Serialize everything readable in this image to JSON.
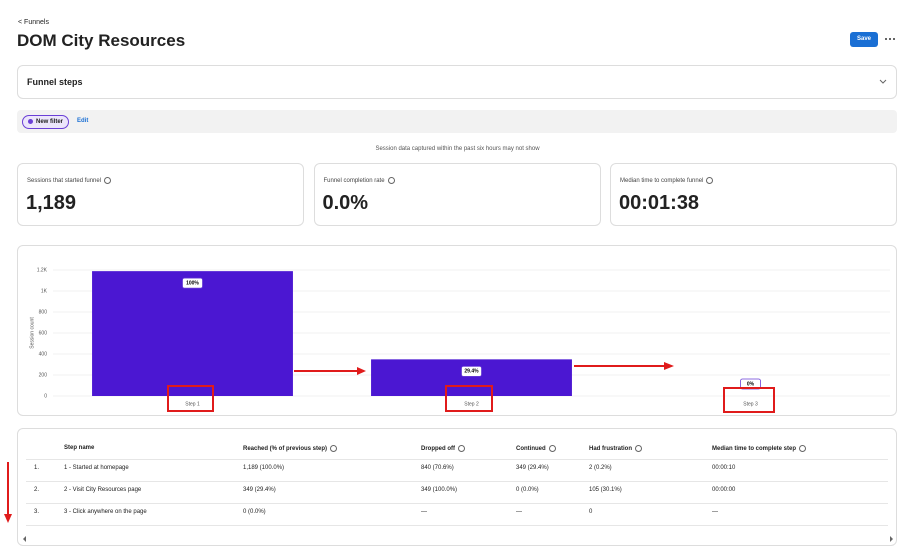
{
  "header": {
    "breadcrumb": "Funnels",
    "title": "DOM City Resources",
    "save": "Save"
  },
  "steps_panel": {
    "title": "Funnel steps"
  },
  "filter": {
    "chip": "New filter",
    "edit": "Edit"
  },
  "notice": "Session data captured within the past six hours may not show",
  "metrics": [
    {
      "label": "Sessions that started funnel",
      "value": "1,189"
    },
    {
      "label": "Funnel completion rate",
      "value": "0.0%"
    },
    {
      "label": "Median time to complete funnel",
      "value": "00:01:38"
    }
  ],
  "chart_data": {
    "type": "bar",
    "y_label": "Session count",
    "categories": [
      "Step 1",
      "Step 2",
      "Step 3"
    ],
    "values": [
      1189,
      349,
      0
    ],
    "bar_labels": [
      "100%",
      "29.4%",
      "0%"
    ],
    "color": "#4b17d2",
    "ylim": [
      0,
      1200
    ],
    "yticks": [
      0,
      200,
      400,
      600,
      800,
      {
        "value": 1000,
        "label": "1K"
      },
      {
        "value": 1200,
        "label": "1.2K"
      }
    ],
    "grid": true
  },
  "table": {
    "columns": [
      "Step name",
      "Reached (% of previous step)",
      "Dropped off",
      "Continued",
      "Had frustration",
      "Median time to complete step"
    ],
    "rows": [
      [
        "1.",
        "1 - Started at homepage",
        "1,189 (100.0%)",
        "840 (70.6%)",
        "349 (29.4%)",
        "2 (0.2%)",
        "00:00:10"
      ],
      [
        "2.",
        "2 - Visit City Resources page",
        "349 (29.4%)",
        "349 (100.0%)",
        "0 (0.0%)",
        "105 (30.1%)",
        "00:00:00"
      ],
      [
        "3.",
        "3 - Click anywhere on the page",
        "0 (0.0%)",
        "—",
        "—",
        "0",
        "—"
      ]
    ]
  }
}
